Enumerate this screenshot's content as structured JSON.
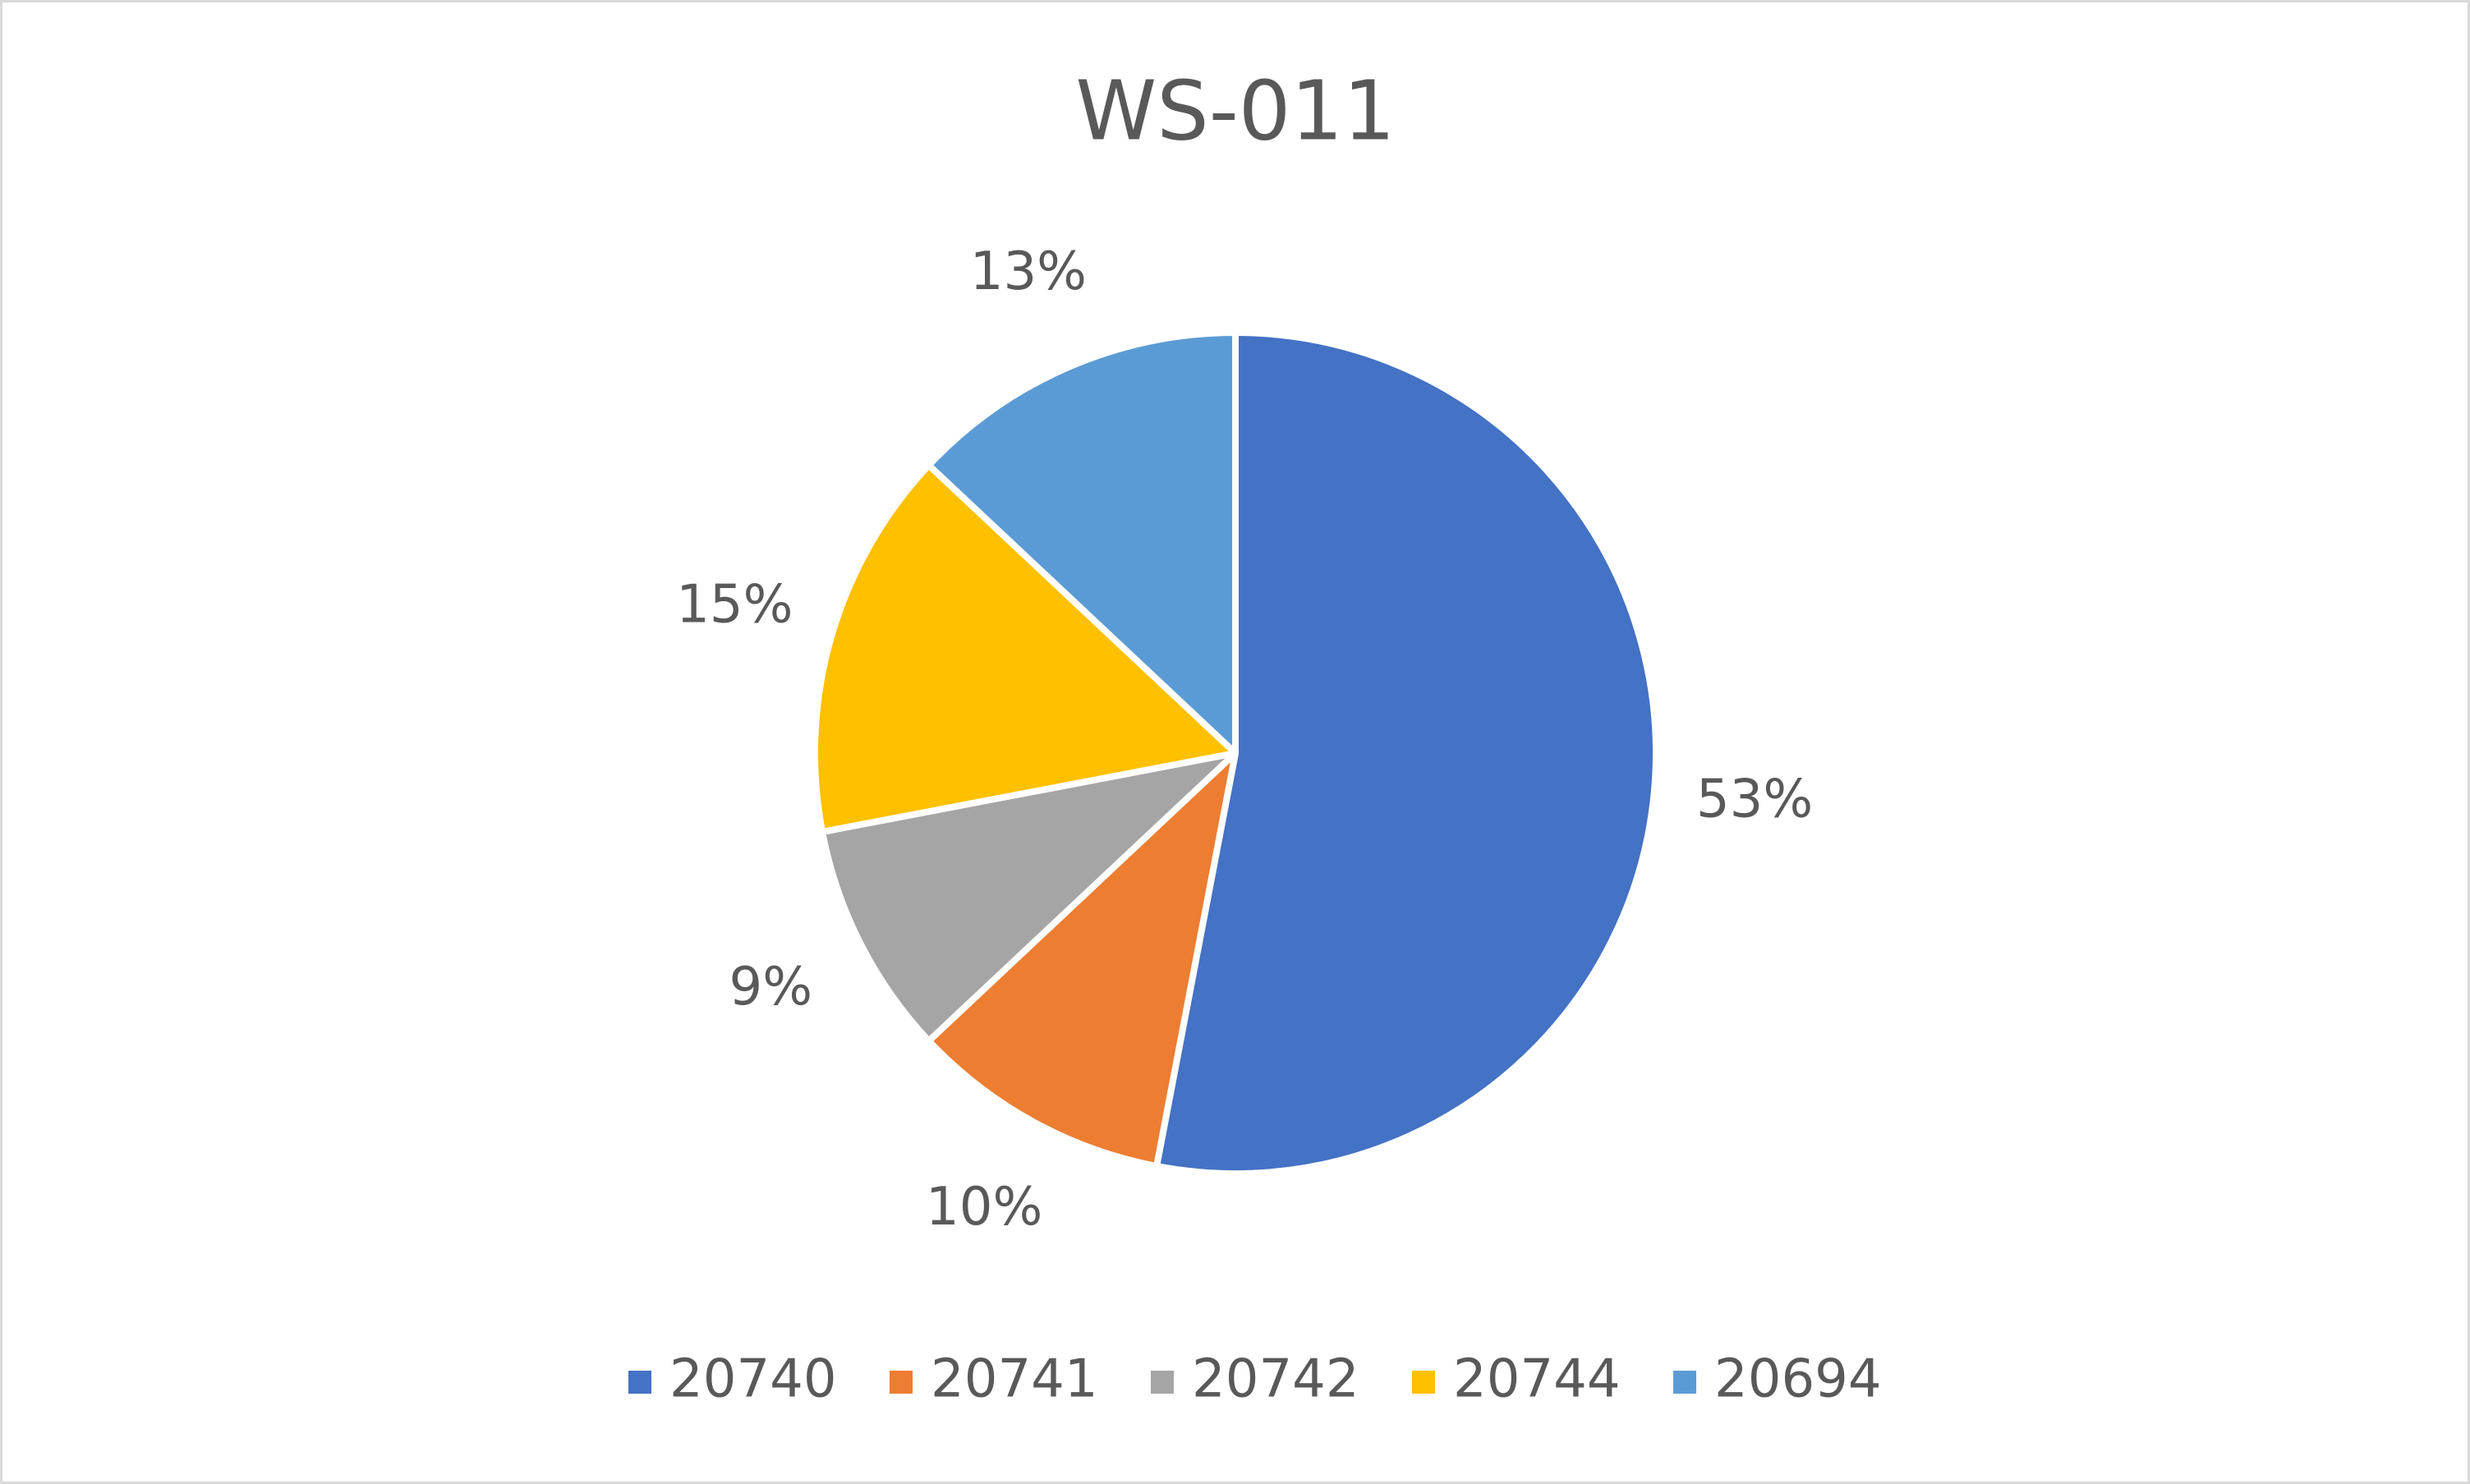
{
  "chart_data": {
    "type": "pie",
    "title": "WS-011",
    "categories": [
      "20740",
      "20741",
      "20742",
      "20744",
      "20694"
    ],
    "values": [
      53,
      10,
      9,
      15,
      13
    ],
    "value_labels": [
      "53%",
      "10%",
      "9%",
      "15%",
      "13%"
    ],
    "colors": [
      "#4472c4",
      "#ed7d31",
      "#a5a5a5",
      "#ffc000",
      "#5b9bd5"
    ],
    "legend": "bottom"
  }
}
